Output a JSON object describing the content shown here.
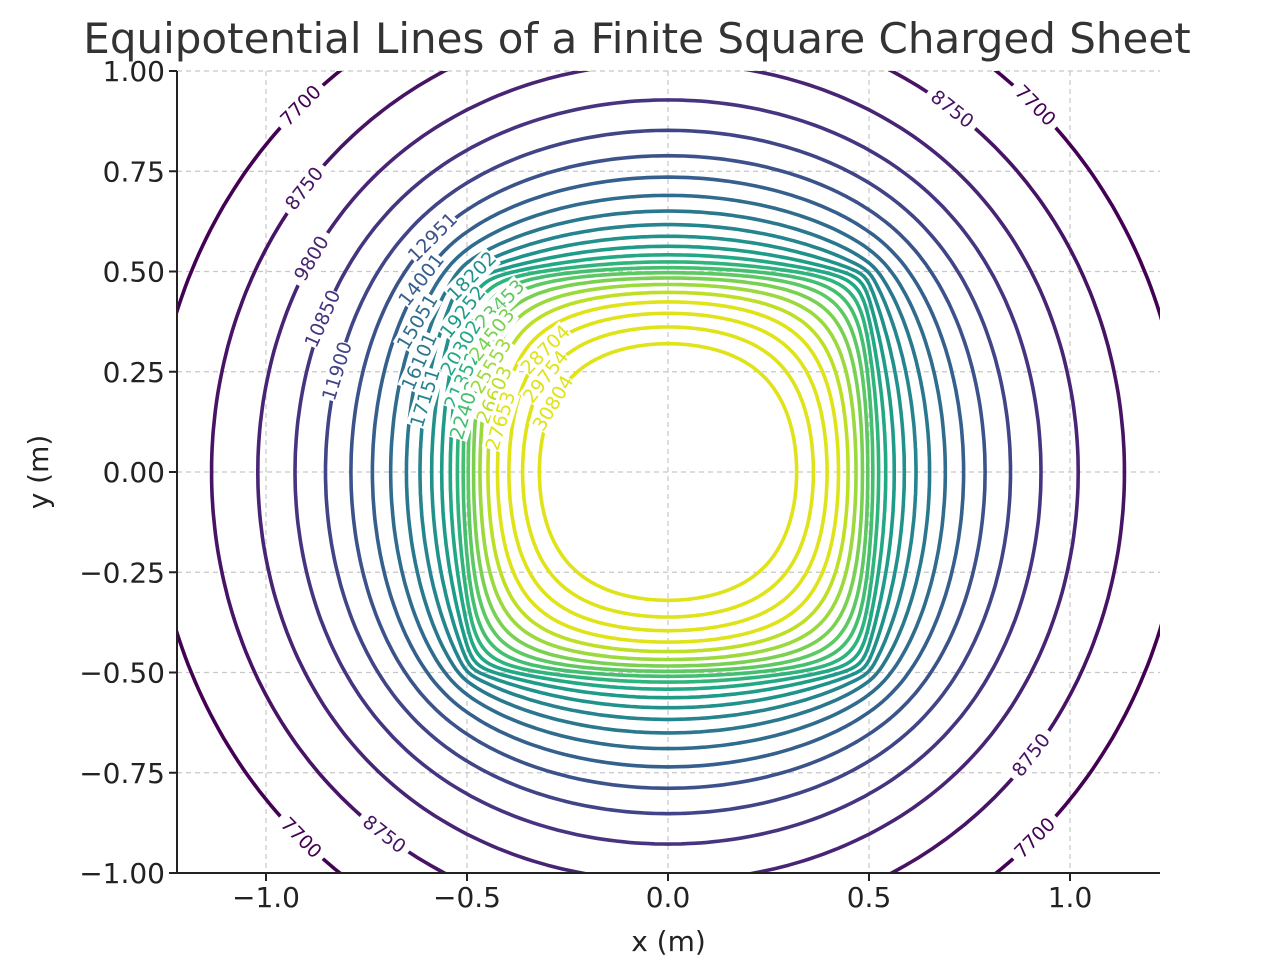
{
  "chart_data": {
    "type": "contour",
    "title": "Equipotential Lines of a Finite Square Charged Sheet",
    "xlabel": "x (m)",
    "ylabel": "y (m)",
    "xlim": [
      -1.22,
      1.22
    ],
    "ylim": [
      -1.0,
      1.0
    ],
    "xticks": [
      -1.0,
      -0.5,
      0.0,
      0.5,
      1.0
    ],
    "xtick_labels": [
      "−1.0",
      "−0.5",
      "0.0",
      "0.5",
      "1.0"
    ],
    "yticks": [
      1.0,
      0.75,
      0.5,
      0.25,
      0.0,
      -0.25,
      -0.5,
      -0.75,
      -1.0
    ],
    "ytick_labels": [
      "1.00",
      "0.75",
      "0.50",
      "0.25",
      "0.00",
      "−0.25",
      "−0.50",
      "−0.75",
      "−1.00"
    ],
    "grid": true,
    "colormap": "viridis",
    "sheet_half_width": 0.5,
    "levels": [
      7700,
      8750,
      9800,
      10850,
      11900,
      12951,
      14001,
      15051,
      16101,
      17151,
      18202,
      19252,
      20302,
      21352,
      22402,
      23453,
      24503,
      25553,
      26603,
      27653,
      28704,
      29754,
      30804
    ],
    "level_colors": [
      "#440154",
      "#471365",
      "#482475",
      "#463480",
      "#414487",
      "#3b528b",
      "#355f8d",
      "#2f6c8e",
      "#2a788e",
      "#25848e",
      "#21918c",
      "#1e9c89",
      "#22a884",
      "#2fb47c",
      "#44bf70",
      "#5ec962",
      "#7ad151",
      "#9bd93c",
      "#bddf26",
      "#dfe318",
      "#dfe318",
      "#dfe318",
      "#dfe318"
    ],
    "contour_labels": [
      {
        "text": "7700",
        "level": 7700
      },
      {
        "text": "7700",
        "level": 7700
      },
      {
        "text": "7700",
        "level": 7700
      },
      {
        "text": "7700",
        "level": 7700
      },
      {
        "text": "8750",
        "level": 8750
      },
      {
        "text": "8750",
        "level": 8750
      },
      {
        "text": "8750",
        "level": 8750
      },
      {
        "text": "8750",
        "level": 8750
      },
      {
        "text": "9800",
        "level": 9800
      },
      {
        "text": "10850",
        "level": 10850
      },
      {
        "text": "11900",
        "level": 11900
      },
      {
        "text": "12951",
        "level": 12951
      },
      {
        "text": "14001",
        "level": 14001
      },
      {
        "text": "15051",
        "level": 15051
      },
      {
        "text": "16101",
        "level": 16101
      },
      {
        "text": "17151",
        "level": 17151
      },
      {
        "text": "18202",
        "level": 18202
      },
      {
        "text": "19252",
        "level": 19252
      },
      {
        "text": "20302",
        "level": 20302
      },
      {
        "text": "21352",
        "level": 21352
      },
      {
        "text": "22402",
        "level": 22402
      },
      {
        "text": "23453",
        "level": 23453
      },
      {
        "text": "24503",
        "level": 24503
      },
      {
        "text": "25553",
        "level": 25553
      },
      {
        "text": "26603",
        "level": 26603
      },
      {
        "text": "27653",
        "level": 27653
      },
      {
        "text": "28704",
        "level": 28704
      },
      {
        "text": "29754",
        "level": 29754
      },
      {
        "text": "30804",
        "level": 30804
      }
    ]
  }
}
